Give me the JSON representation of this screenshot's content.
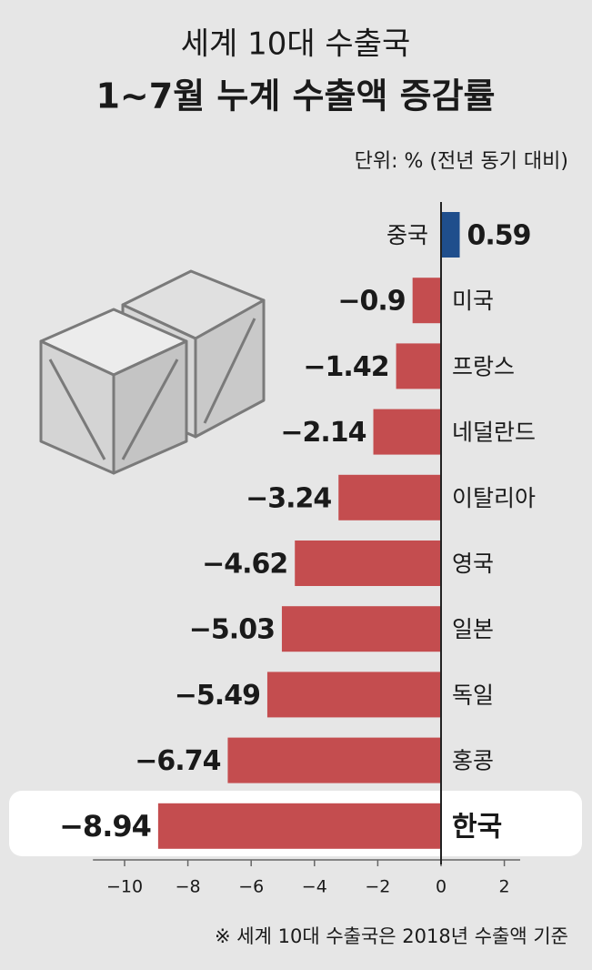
{
  "chart_data": {
    "type": "bar",
    "orientation": "horizontal",
    "title": "세계 10대 수출국",
    "subtitle": "1~7월 누계 수출액 증감률",
    "unit_note": "단위: % (전년 동기 대비)",
    "footnote": "※ 세계 10대 수출국은 2018년 수출액 기준",
    "categories": [
      "중국",
      "미국",
      "프랑스",
      "네덜란드",
      "이탈리아",
      "영국",
      "일본",
      "독일",
      "홍콩",
      "한국"
    ],
    "values": [
      0.59,
      -0.9,
      -1.42,
      -2.14,
      -3.24,
      -4.62,
      -5.03,
      -5.49,
      -6.74,
      -8.94
    ],
    "value_labels": [
      "0.59",
      "−0.9",
      "−1.42",
      "−2.14",
      "−3.24",
      "−4.62",
      "−5.03",
      "−5.49",
      "−6.74",
      "−8.94"
    ],
    "colors": [
      "#1f4e8c",
      "#c44d4f",
      "#c44d4f",
      "#c44d4f",
      "#c44d4f",
      "#c44d4f",
      "#c44d4f",
      "#c44d4f",
      "#c44d4f",
      "#c44d4f"
    ],
    "xlim": [
      -11,
      2.5
    ],
    "xticks": [
      {
        "value": -10,
        "label": "−10"
      },
      {
        "value": -8,
        "label": "−8"
      },
      {
        "value": -6,
        "label": "−6"
      },
      {
        "value": -4,
        "label": "−4"
      },
      {
        "value": -2,
        "label": "−2"
      },
      0,
      2
    ],
    "grid": false
  }
}
